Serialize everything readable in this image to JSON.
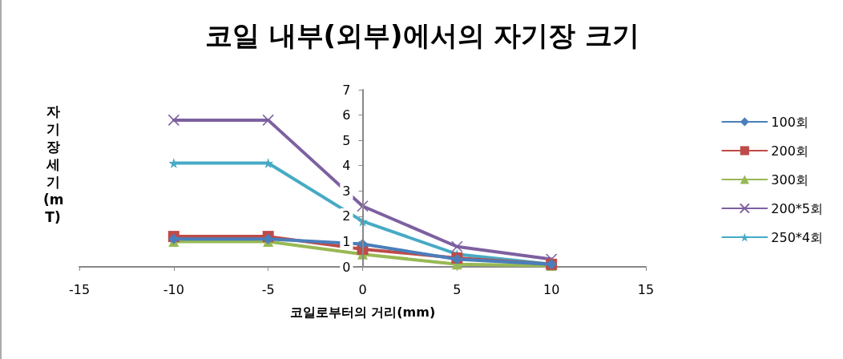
{
  "chart_data": {
    "type": "line",
    "title": "코일 내부(외부)에서의 자기장 크기",
    "xlabel": "코일로부터의 거리(mm)",
    "ylabel": "자기장 세기(mT)",
    "x": [
      -10,
      -5,
      0,
      5,
      10
    ],
    "series": [
      {
        "name": "100회",
        "color": "#4a7ebb",
        "marker": "diamond",
        "values": [
          1.1,
          1.1,
          0.9,
          0.3,
          0.1
        ]
      },
      {
        "name": "200회",
        "color": "#be4b48",
        "marker": "square",
        "values": [
          1.2,
          1.2,
          0.7,
          0.35,
          0.1
        ]
      },
      {
        "name": "300회",
        "color": "#98b954",
        "marker": "triangle",
        "values": [
          1.0,
          1.0,
          0.5,
          0.1,
          0.05
        ]
      },
      {
        "name": "200*5회",
        "color": "#7d60a0",
        "marker": "cross",
        "values": [
          5.8,
          5.8,
          2.4,
          0.8,
          0.3
        ]
      },
      {
        "name": "250*4회",
        "color": "#46aac5",
        "marker": "star",
        "values": [
          4.1,
          4.1,
          1.8,
          0.5,
          0.1
        ]
      }
    ],
    "xlim": [
      -15,
      15
    ],
    "xticks": [
      -15,
      -10,
      -5,
      0,
      5,
      10,
      15
    ],
    "ylim": [
      0,
      7
    ],
    "yticks": [
      0,
      1,
      2,
      3,
      4,
      5,
      6,
      7
    ],
    "grid": false,
    "legend": "right",
    "line_style": "solid"
  }
}
